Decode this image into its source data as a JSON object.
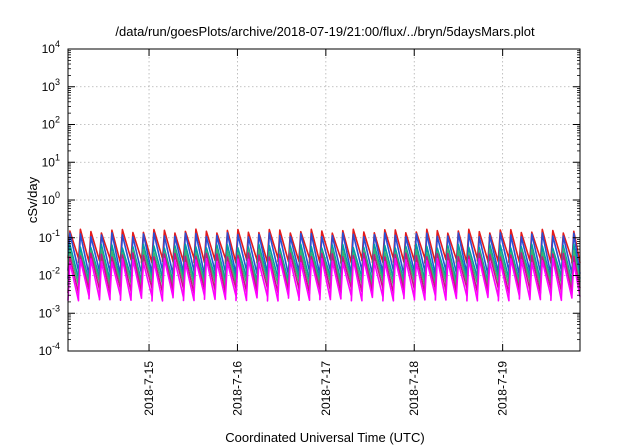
{
  "chart_data": {
    "type": "line",
    "title": "/data/run/goesPlots/archive/2018-07-19/21:00/flux/../bryn/5daysMars.plot",
    "xlabel": "Coordinated Universal Time (UTC)",
    "ylabel": "cSv/day",
    "scale": "log",
    "ylim": [
      0.0001,
      10000
    ],
    "xlim": [
      "2018-07-14T02:00",
      "2018-07-19T21:00"
    ],
    "grid": true,
    "y_ticks": [
      {
        "base": "10",
        "exp": "-4"
      },
      {
        "base": "10",
        "exp": "-3"
      },
      {
        "base": "10",
        "exp": "-2"
      },
      {
        "base": "10",
        "exp": "-1"
      },
      {
        "base": "10",
        "exp": "0"
      },
      {
        "base": "10",
        "exp": "1"
      },
      {
        "base": "10",
        "exp": "2"
      },
      {
        "base": "10",
        "exp": "3"
      },
      {
        "base": "10",
        "exp": "4"
      }
    ],
    "x_ticks": [
      "2018-7-15",
      "2018-7-16",
      "2018-7-17",
      "2018-7-18",
      "2018-7-19"
    ],
    "x_tick_dates": [
      "2018-07-15T00:00",
      "2018-07-16T00:00",
      "2018-07-17T00:00",
      "2018-07-18T00:00",
      "2018-07-19T00:00"
    ],
    "sawtooth_period_hours": 2.85,
    "series": [
      {
        "color": "#e41a1c",
        "peak": 0.15,
        "trough": 0.025
      },
      {
        "color": "#2a4fd4",
        "peak": 0.12,
        "trough": 0.012
      },
      {
        "color": "#00a0a0",
        "peak": 0.06,
        "trough": 0.008
      },
      {
        "color": "#3cb371",
        "peak": 0.045,
        "trough": 0.006
      },
      {
        "color": "#c71585",
        "peak": 0.035,
        "trough": 0.004
      },
      {
        "color": "#ff00ff",
        "peak": 0.025,
        "trough": 0.0025
      }
    ]
  }
}
